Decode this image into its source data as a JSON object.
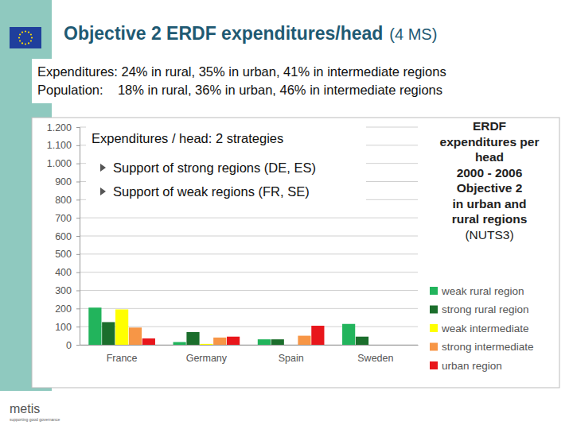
{
  "slide": {
    "title": "Objective 2 ERDF expenditures/head",
    "title_note": "(4 MS)",
    "lines": [
      "Expenditures: 24% in rural, 35% in urban, 41% in intermediate regions",
      "Population:    18% in rural, 36% in urban, 46% in intermediate regions"
    ],
    "logo": "metis",
    "logo_tagline": "supporting good governance"
  },
  "chart_data": {
    "type": "bar",
    "title": "ERDF\nexpenditures per\nhead\n2000 - 2006\nObjective 2\nin urban and\nrural regions\n(NUTS3)",
    "annotations": [
      "Expenditures / head: 2 strategies",
      "Support of strong regions (DE, ES)",
      "Support of weak regions (FR, SE)"
    ],
    "categories": [
      "France",
      "Germany",
      "Spain",
      "Sweden"
    ],
    "series": [
      {
        "name": "weak rural region",
        "color": "#22b45c",
        "values": [
          205,
          15,
          30,
          115
        ]
      },
      {
        "name": "strong rural region",
        "color": "#1b6e2c",
        "values": [
          125,
          70,
          30,
          45
        ]
      },
      {
        "name": "weak intermediate",
        "color": "#ffff00",
        "values": [
          195,
          5,
          null,
          null
        ]
      },
      {
        "name": "strong intermediate",
        "color": "#f79646",
        "values": [
          95,
          40,
          50,
          null
        ]
      },
      {
        "name": "urban region",
        "color": "#e8161b",
        "values": [
          35,
          45,
          105,
          null
        ]
      }
    ],
    "ylim": [
      0,
      1200
    ],
    "yticks": [
      0,
      100,
      200,
      300,
      400,
      500,
      600,
      700,
      800,
      900,
      {
        "value": 1000,
        "label": "1.000"
      },
      {
        "value": 1100,
        "label": "1.100"
      },
      {
        "value": 1200,
        "label": "1.200"
      }
    ],
    "grid": true,
    "legend": "right"
  }
}
